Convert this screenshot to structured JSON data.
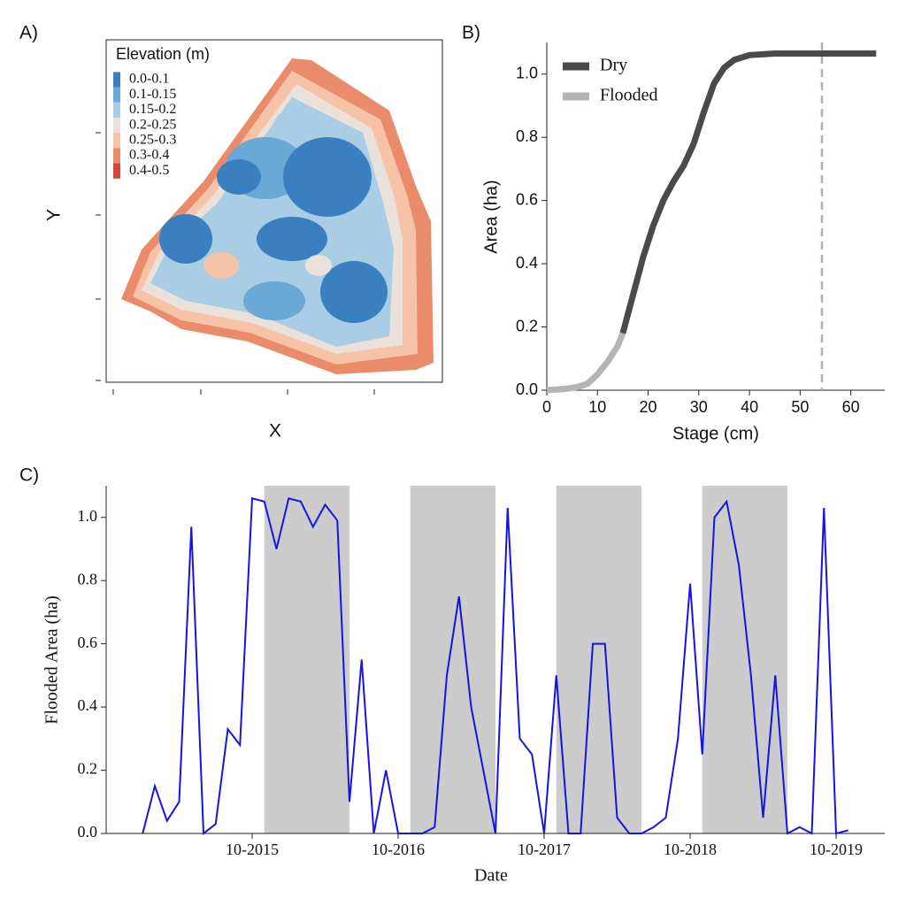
{
  "chart_data": [
    {
      "type": "map",
      "panel": "A)",
      "xlabel": "X",
      "ylabel": "Y",
      "legend": {
        "title": "Elevation (m)",
        "items": [
          {
            "name": "0.0-0.1",
            "color": "#3a7fc0"
          },
          {
            "name": "0.1-0.15",
            "color": "#6aa9d6"
          },
          {
            "name": "0.15-0.2",
            "color": "#a8cde4"
          },
          {
            "name": "0.2-0.25",
            "color": "#e9e1da"
          },
          {
            "name": "0.25-0.3",
            "color": "#f7c3a6"
          },
          {
            "name": "0.3-0.4",
            "color": "#ea8b6c"
          },
          {
            "name": "0.4-0.5",
            "color": "#d4443a"
          }
        ]
      }
    },
    {
      "type": "line",
      "panel": "B)",
      "xlabel": "Stage (cm)",
      "ylabel": "Area (ha)",
      "xlim": [
        0,
        66.7
      ],
      "ylim": [
        0,
        1.1
      ],
      "xticks": [
        0,
        10,
        20,
        30,
        40,
        50,
        60
      ],
      "yticks": [
        {
          "value": 0,
          "label": "0.0"
        },
        {
          "value": 0.2,
          "label": "0.2"
        },
        {
          "value": 0.4,
          "label": "0.4"
        },
        {
          "value": 0.6,
          "label": "0.6"
        },
        {
          "value": 0.8,
          "label": "0.8"
        },
        {
          "value": 1.0,
          "label": "1.0"
        }
      ],
      "vline": 54.3,
      "vline_color": "#b0b0b0",
      "series": [
        {
          "name": "Dry",
          "color": "#4a4a4a",
          "x": [
            15,
            17,
            19,
            21,
            23,
            25,
            27,
            29,
            31,
            33,
            35,
            37,
            40,
            45,
            50,
            55,
            60,
            65
          ],
          "values": [
            0.18,
            0.3,
            0.42,
            0.52,
            0.6,
            0.66,
            0.71,
            0.78,
            0.88,
            0.97,
            1.02,
            1.045,
            1.06,
            1.065,
            1.065,
            1.065,
            1.065,
            1.065
          ]
        },
        {
          "name": "Flooded",
          "color": "#b4b4b4",
          "x": [
            0,
            2,
            4,
            6,
            8,
            10,
            12,
            14,
            15
          ],
          "values": [
            0,
            0.002,
            0.005,
            0.01,
            0.02,
            0.05,
            0.09,
            0.14,
            0.18
          ]
        }
      ]
    },
    {
      "type": "timeseries",
      "panel": "C)",
      "xlabel": "Date",
      "ylabel": "Flooded Area (ha)",
      "color": "#1414e6",
      "shade_color": "#cccccc",
      "xlim": [
        "2014-10",
        "2020-02"
      ],
      "ylim": [
        0,
        1.1
      ],
      "xticks": [
        {
          "value": "2015-10",
          "label": "10-2015"
        },
        {
          "value": "2016-10",
          "label": "10-2016"
        },
        {
          "value": "2017-10",
          "label": "10-2017"
        },
        {
          "value": "2018-10",
          "label": "10-2018"
        },
        {
          "value": "2019-10",
          "label": "10-2019"
        }
      ],
      "yticks": [
        {
          "value": 0,
          "label": "0.0"
        },
        {
          "value": 0.2,
          "label": "0.2"
        },
        {
          "value": 0.4,
          "label": "0.4"
        },
        {
          "value": 0.6,
          "label": "0.6"
        },
        {
          "value": 0.8,
          "label": "0.8"
        },
        {
          "value": 1.0,
          "label": "1.0"
        }
      ],
      "shaded": [
        [
          "2015-11",
          "2016-06"
        ],
        [
          "2016-11",
          "2017-06"
        ],
        [
          "2017-11",
          "2018-06"
        ],
        [
          "2018-11",
          "2019-06"
        ]
      ],
      "x": [
        "2015-01",
        "2015-02",
        "2015-03",
        "2015-04",
        "2015-05",
        "2015-06",
        "2015-07",
        "2015-08",
        "2015-09",
        "2015-10",
        "2015-11",
        "2015-12",
        "2016-01",
        "2016-02",
        "2016-03",
        "2016-04",
        "2016-05",
        "2016-06",
        "2016-07",
        "2016-08",
        "2016-09",
        "2016-10",
        "2016-11",
        "2016-12",
        "2017-01",
        "2017-02",
        "2017-03",
        "2017-04",
        "2017-05",
        "2017-06",
        "2017-07",
        "2017-08",
        "2017-09",
        "2017-10",
        "2017-11",
        "2017-12",
        "2018-01",
        "2018-02",
        "2018-03",
        "2018-04",
        "2018-05",
        "2018-06",
        "2018-07",
        "2018-08",
        "2018-09",
        "2018-10",
        "2018-11",
        "2018-12",
        "2019-01",
        "2019-02",
        "2019-03",
        "2019-04",
        "2019-05",
        "2019-06",
        "2019-07",
        "2019-08",
        "2019-09",
        "2019-10",
        "2019-11"
      ],
      "values": [
        0,
        0.15,
        0.04,
        0.1,
        0.97,
        0,
        0.03,
        0.33,
        0.28,
        1.06,
        1.05,
        0.9,
        1.06,
        1.05,
        0.97,
        1.04,
        0.99,
        0.1,
        0.55,
        0,
        0.2,
        0,
        0,
        0,
        0.02,
        0.5,
        0.75,
        0.4,
        0.2,
        0,
        1.03,
        0.3,
        0.25,
        0,
        0.5,
        0,
        0,
        0.6,
        0.6,
        0.05,
        0,
        0,
        0.02,
        0.05,
        0.3,
        0.79,
        0.25,
        1.0,
        1.05,
        0.85,
        0.5,
        0.05,
        0.5,
        0,
        0.02,
        0,
        1.03,
        0,
        0.01
      ]
    }
  ]
}
